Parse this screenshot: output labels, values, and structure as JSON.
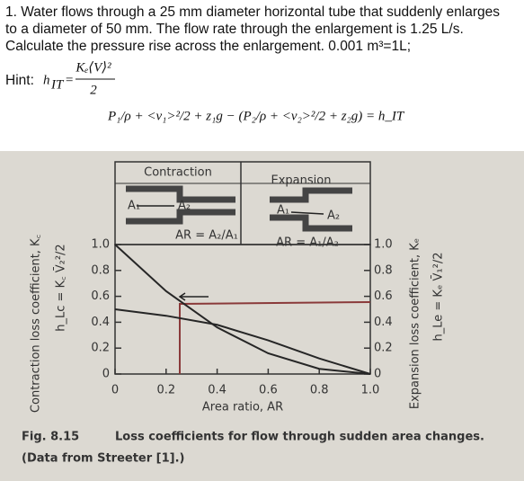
{
  "problem": {
    "lines": [
      "1. Water flows through a 25 mm diameter horizontal tube that suddenly enlarges",
      "to a diameter of 50 mm. The flow rate through the enlargement is 1.25 L/s.",
      "Calculate the pressure rise across the enlargement. 0.001 m³=1L;"
    ]
  },
  "hint": {
    "label": "Hint:",
    "lhs": "h",
    "lhs_sub": "IT",
    "equals": "=",
    "numerator": "Kₑ⟨V⟩²",
    "denominator": "2"
  },
  "equation": "P₁/ρ + <v₁>²/2 + z₁g − (P₂/ρ + <v₂>²/2 + z₂g) = h_IT",
  "chart_data": {
    "type": "line",
    "x": [
      0,
      0.2,
      0.4,
      0.6,
      0.8,
      1
    ],
    "series": [
      {
        "name": "Contraction",
        "color": "#262626",
        "values": [
          0.5,
          0.45,
          0.38,
          0.26,
          0.12,
          0
        ]
      },
      {
        "name": "Expansion",
        "color": "#262626",
        "axis": "y2",
        "values": [
          1,
          0.64,
          0.36,
          0.16,
          0.04,
          0
        ]
      }
    ],
    "xlim": [
      0,
      1
    ],
    "xticks": [
      0,
      0.2,
      0.4,
      0.6,
      0.8,
      {
        "value": 1,
        "label": "1.0"
      }
    ],
    "ylim": [
      0,
      1
    ],
    "yticks": [
      0,
      0.2,
      0.4,
      0.6,
      0.8,
      {
        "value": 1,
        "label": "1.0"
      }
    ],
    "y2lim": [
      0,
      1
    ],
    "y2ticks": [
      0,
      0.2,
      0.4,
      0.6,
      0.8,
      {
        "value": 1,
        "label": "1.0"
      }
    ],
    "xlabel": "Area ratio, AR",
    "ylabel": "Contraction loss coefficient, K꜀",
    "ylabel_formula": "h_Lc = K꜀ V̄₂²/2",
    "y2label": "Expansion loss coefficient, Kₑ",
    "y2label_formula": "h_Le = Kₑ V̄₁²/2",
    "contraction_areas": [
      "A₁",
      "A₂"
    ],
    "contraction_ratio": "AR = A₂/A₁",
    "expansion_areas": [
      "A₁",
      "A₂"
    ],
    "expansion_ratio": "AR = A₁/A₂",
    "caption_label": "Fig. 8.15",
    "caption": "Loss coefficients for flow through sudden area changes.",
    "caption_line2": "(Data from Streeter [1].)"
  }
}
